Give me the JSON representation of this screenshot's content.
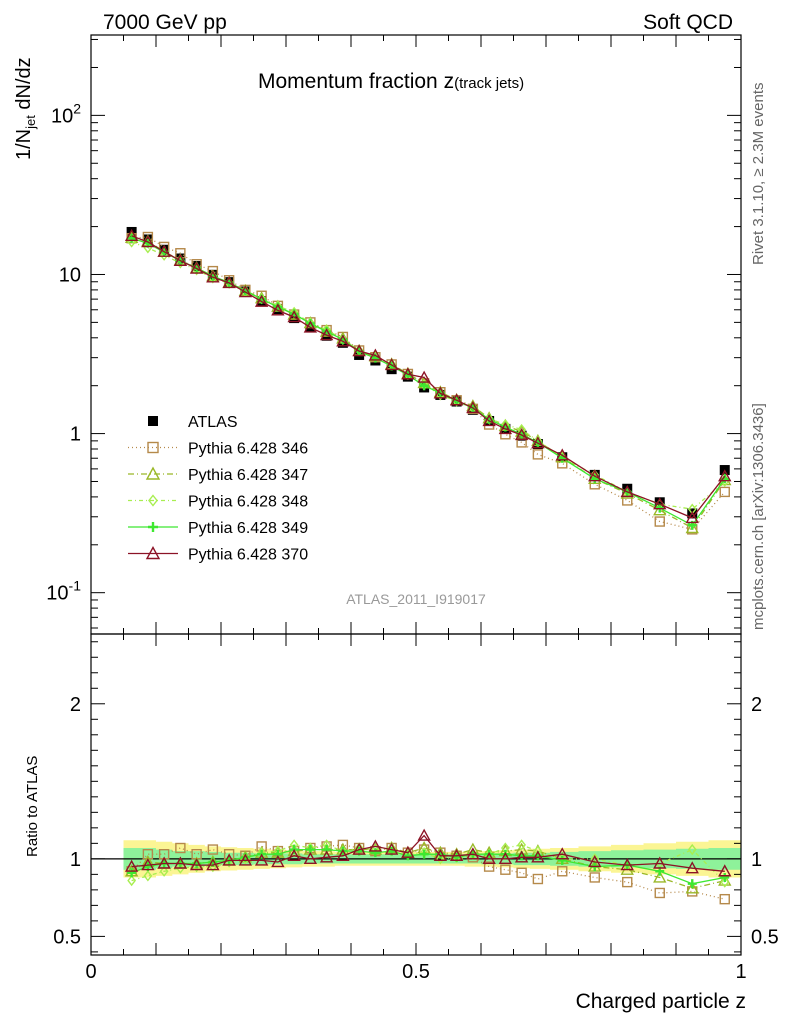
{
  "header": {
    "left": "7000 GeV pp",
    "right": "Soft QCD"
  },
  "side_labels": {
    "rivet": "Rivet 3.1.10, ≥ 2.3M events",
    "mcplots": "mcplots.cern.ch [arXiv:1306.3436]"
  },
  "analysis_label": "ATLAS_2011_I919017",
  "chart_data": [
    {
      "type": "line",
      "panel": "main",
      "title": "Momentum fraction z",
      "title_sub": "(track jets)",
      "ylabel": "1/N_jet dN/dz",
      "xlabel": "",
      "yscale": "log",
      "xlim": [
        0,
        1
      ],
      "ylim": [
        0.055,
        320
      ],
      "y_ticks": [
        {
          "value": 0.1,
          "label": "10^-1"
        },
        {
          "value": 1,
          "label": "1"
        },
        {
          "value": 10,
          "label": "10"
        },
        {
          "value": 100,
          "label": "10^2"
        }
      ],
      "x": [
        0.0625,
        0.0875,
        0.1125,
        0.1375,
        0.1625,
        0.1875,
        0.2125,
        0.2375,
        0.2625,
        0.2875,
        0.3125,
        0.3375,
        0.3625,
        0.3875,
        0.4125,
        0.4375,
        0.4625,
        0.4875,
        0.5125,
        0.5375,
        0.5625,
        0.5875,
        0.6125,
        0.6375,
        0.6625,
        0.6875,
        0.725,
        0.775,
        0.825,
        0.875,
        0.925,
        0.975
      ],
      "legend": {
        "placement": "left-middle"
      },
      "series": [
        {
          "name": "ATLAS",
          "color": "#000000",
          "marker": "square-filled",
          "dash": "none",
          "values": [
            18.5,
            16.6,
            14.3,
            12.6,
            11.3,
            9.95,
            8.95,
            7.82,
            6.8,
            6.05,
            5.32,
            4.66,
            4.12,
            3.72,
            3.12,
            2.88,
            2.54,
            2.28,
            1.95,
            1.75,
            1.59,
            1.41,
            1.2,
            1.07,
            0.97,
            0.86,
            0.71,
            0.55,
            0.45,
            0.37,
            0.315,
            0.59
          ]
        },
        {
          "name": "Pythia 6.428 346",
          "color": "#b5894a",
          "marker": "square-open",
          "dash": "1,3",
          "values": [
            16.9,
            17.2,
            14.9,
            13.6,
            11.6,
            10.5,
            9.2,
            8.0,
            7.35,
            6.35,
            5.6,
            5.0,
            4.47,
            4.05,
            3.33,
            3.02,
            2.72,
            2.37,
            2.07,
            1.82,
            1.62,
            1.43,
            1.14,
            0.99,
            0.88,
            0.74,
            0.65,
            0.48,
            0.38,
            0.28,
            0.25,
            0.43
          ]
        },
        {
          "name": "Pythia 6.428 347",
          "color": "#9ab828",
          "marker": "triangle-open",
          "dash": "6,3,1,3",
          "values": [
            17.0,
            16.2,
            13.9,
            12.3,
            11.0,
            9.75,
            8.9,
            7.9,
            7.1,
            6.28,
            5.6,
            4.95,
            4.37,
            3.96,
            3.31,
            3.06,
            2.73,
            2.38,
            2.08,
            1.82,
            1.63,
            1.49,
            1.25,
            1.12,
            1.03,
            0.9,
            0.71,
            0.52,
            0.42,
            0.33,
            0.255,
            0.51
          ]
        },
        {
          "name": "Pythia 6.428 348",
          "color": "#a8ee50",
          "marker": "diamond-open",
          "dash": "4,3,1,3",
          "values": [
            16.0,
            14.7,
            13.2,
            11.8,
            10.7,
            9.5,
            8.8,
            7.8,
            7.05,
            6.35,
            5.78,
            4.97,
            4.5,
            3.9,
            3.34,
            3.06,
            2.73,
            2.35,
            2.03,
            1.75,
            1.6,
            1.45,
            1.24,
            1.14,
            1.06,
            0.9,
            0.71,
            0.55,
            0.43,
            0.36,
            0.335,
            0.5
          ]
        },
        {
          "name": "Pythia 6.428 349",
          "color": "#3ee830",
          "marker": "cross",
          "dash": "none",
          "values": [
            16.9,
            15.7,
            13.8,
            12.2,
            11.0,
            9.75,
            8.9,
            7.9,
            7.0,
            6.25,
            5.65,
            4.92,
            4.38,
            3.9,
            3.28,
            2.98,
            2.66,
            2.33,
            2.0,
            1.8,
            1.6,
            1.45,
            1.23,
            1.1,
            0.99,
            0.88,
            0.7,
            0.52,
            0.43,
            0.34,
            0.265,
            0.52
          ]
        },
        {
          "name": "Pythia 6.428 370",
          "color": "#8c1326",
          "marker": "triangle-open",
          "dash": "none",
          "values": [
            17.5,
            16.0,
            13.9,
            12.2,
            10.9,
            9.6,
            8.85,
            7.75,
            6.75,
            5.95,
            5.4,
            4.65,
            4.16,
            3.8,
            3.3,
            3.1,
            2.7,
            2.36,
            2.25,
            1.79,
            1.62,
            1.45,
            1.2,
            1.07,
            0.98,
            0.87,
            0.73,
            0.54,
            0.43,
            0.36,
            0.295,
            0.54
          ]
        }
      ]
    },
    {
      "type": "line",
      "panel": "ratio",
      "ylabel": "Ratio to ATLAS",
      "xlabel": "Charged particle z",
      "xlim": [
        0,
        1
      ],
      "ylim": [
        0.38,
        2.45
      ],
      "x_ticks": [
        {
          "value": 0,
          "label": "0"
        },
        {
          "value": 0.5,
          "label": "0.5"
        },
        {
          "value": 1,
          "label": "1"
        }
      ],
      "y_ticks": [
        {
          "value": 0.5,
          "label": "0.5"
        },
        {
          "value": 1,
          "label": "1"
        },
        {
          "value": 2,
          "label": "2"
        }
      ],
      "x": [
        0.0625,
        0.0875,
        0.1125,
        0.1375,
        0.1625,
        0.1875,
        0.2125,
        0.2375,
        0.2625,
        0.2875,
        0.3125,
        0.3375,
        0.3625,
        0.3875,
        0.4125,
        0.4375,
        0.4625,
        0.4875,
        0.5125,
        0.5375,
        0.5625,
        0.5875,
        0.6125,
        0.6375,
        0.6625,
        0.6875,
        0.725,
        0.775,
        0.825,
        0.875,
        0.925,
        0.975
      ],
      "band": {
        "inner_color": "#8ef29a",
        "outer_color": "#fbf594",
        "inner_halfwidth": [
          0.07,
          0.07,
          0.06,
          0.05,
          0.05,
          0.045,
          0.04,
          0.04,
          0.035,
          0.035,
          0.035,
          0.03,
          0.03,
          0.03,
          0.03,
          0.03,
          0.03,
          0.03,
          0.03,
          0.03,
          0.03,
          0.03,
          0.035,
          0.035,
          0.04,
          0.04,
          0.045,
          0.05,
          0.055,
          0.06,
          0.065,
          0.07
        ],
        "outer_halfwidth": [
          0.12,
          0.12,
          0.11,
          0.1,
          0.09,
          0.08,
          0.075,
          0.07,
          0.065,
          0.06,
          0.055,
          0.05,
          0.05,
          0.045,
          0.045,
          0.045,
          0.045,
          0.045,
          0.045,
          0.045,
          0.045,
          0.05,
          0.05,
          0.055,
          0.06,
          0.065,
          0.07,
          0.08,
          0.09,
          0.1,
          0.11,
          0.12
        ]
      },
      "series": [
        {
          "name": "Pythia 6.428 346",
          "color": "#b5894a",
          "marker": "square-open",
          "dash": "1,3",
          "values": [
            0.92,
            1.03,
            1.03,
            1.07,
            1.03,
            1.06,
            1.03,
            1.02,
            1.08,
            1.05,
            1.05,
            1.07,
            1.08,
            1.09,
            1.07,
            1.05,
            1.07,
            1.04,
            1.06,
            1.04,
            1.02,
            1.01,
            0.95,
            0.93,
            0.91,
            0.87,
            0.92,
            0.88,
            0.85,
            0.78,
            0.79,
            0.74
          ]
        },
        {
          "name": "Pythia 6.428 347",
          "color": "#9ab828",
          "marker": "triangle-open",
          "dash": "6,3,1,3",
          "values": [
            0.92,
            0.98,
            0.97,
            0.97,
            0.97,
            0.98,
            0.99,
            1.01,
            1.04,
            1.04,
            1.05,
            1.06,
            1.06,
            1.06,
            1.06,
            1.06,
            1.07,
            1.04,
            1.07,
            1.04,
            1.03,
            1.06,
            1.04,
            1.05,
            1.06,
            1.05,
            1.0,
            0.95,
            0.93,
            0.88,
            0.81,
            0.86
          ]
        },
        {
          "name": "Pythia 6.428 348",
          "color": "#a8ee50",
          "marker": "diamond-open",
          "dash": "4,3,1,3",
          "values": [
            0.86,
            0.89,
            0.92,
            0.94,
            0.95,
            0.95,
            0.98,
            1.0,
            1.04,
            1.05,
            1.09,
            1.07,
            1.09,
            1.05,
            1.07,
            1.06,
            1.07,
            1.03,
            1.04,
            1.0,
            1.01,
            1.03,
            1.03,
            1.07,
            1.09,
            1.05,
            1.0,
            1.0,
            0.96,
            0.97,
            1.06,
            0.85
          ]
        },
        {
          "name": "Pythia 6.428 349",
          "color": "#3ee830",
          "marker": "cross",
          "dash": "none",
          "values": [
            0.91,
            0.95,
            0.97,
            0.97,
            0.97,
            0.98,
            0.99,
            1.01,
            1.03,
            1.03,
            1.06,
            1.06,
            1.06,
            1.05,
            1.05,
            1.04,
            1.05,
            1.02,
            1.03,
            1.03,
            1.01,
            1.03,
            1.03,
            1.03,
            1.02,
            1.02,
            0.99,
            0.95,
            0.96,
            0.92,
            0.84,
            0.88
          ]
        },
        {
          "name": "Pythia 6.428 370",
          "color": "#8c1326",
          "marker": "triangle-open",
          "dash": "none",
          "values": [
            0.95,
            0.96,
            0.97,
            0.97,
            0.96,
            0.96,
            0.99,
            0.99,
            0.99,
            0.98,
            1.02,
            1.0,
            1.01,
            1.02,
            1.06,
            1.08,
            1.06,
            1.04,
            1.15,
            1.02,
            1.02,
            1.03,
            1.0,
            1.0,
            1.01,
            1.01,
            1.03,
            0.98,
            0.96,
            0.97,
            0.94,
            0.92
          ]
        }
      ]
    }
  ]
}
